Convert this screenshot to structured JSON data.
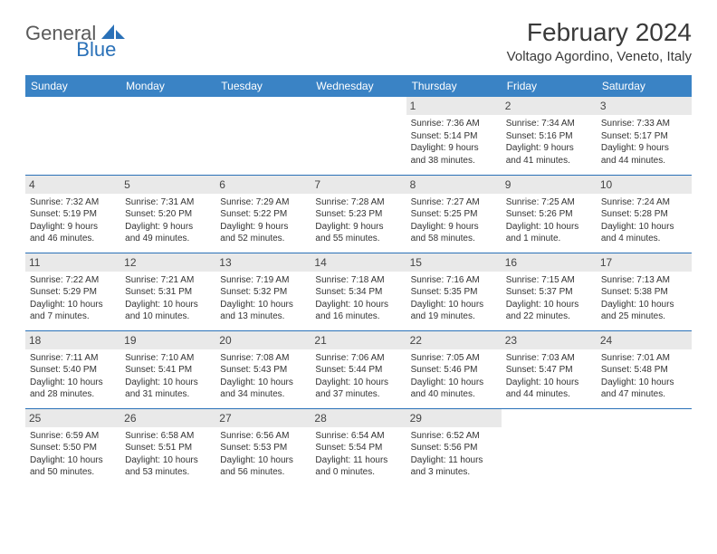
{
  "logo": {
    "general": "General",
    "blue": "Blue"
  },
  "title": "February 2024",
  "location": "Voltago Agordino, Veneto, Italy",
  "colors": {
    "header_bg": "#3a83c5",
    "logo_blue": "#2a71b8",
    "daynum_bg": "#e9e9e9",
    "rule": "#2a71b8"
  },
  "day_headers": [
    "Sunday",
    "Monday",
    "Tuesday",
    "Wednesday",
    "Thursday",
    "Friday",
    "Saturday"
  ],
  "weeks": [
    [
      {
        "n": "",
        "l1": "",
        "l2": "",
        "l3": "",
        "l4": ""
      },
      {
        "n": "",
        "l1": "",
        "l2": "",
        "l3": "",
        "l4": ""
      },
      {
        "n": "",
        "l1": "",
        "l2": "",
        "l3": "",
        "l4": ""
      },
      {
        "n": "",
        "l1": "",
        "l2": "",
        "l3": "",
        "l4": ""
      },
      {
        "n": "1",
        "l1": "Sunrise: 7:36 AM",
        "l2": "Sunset: 5:14 PM",
        "l3": "Daylight: 9 hours",
        "l4": "and 38 minutes."
      },
      {
        "n": "2",
        "l1": "Sunrise: 7:34 AM",
        "l2": "Sunset: 5:16 PM",
        "l3": "Daylight: 9 hours",
        "l4": "and 41 minutes."
      },
      {
        "n": "3",
        "l1": "Sunrise: 7:33 AM",
        "l2": "Sunset: 5:17 PM",
        "l3": "Daylight: 9 hours",
        "l4": "and 44 minutes."
      }
    ],
    [
      {
        "n": "4",
        "l1": "Sunrise: 7:32 AM",
        "l2": "Sunset: 5:19 PM",
        "l3": "Daylight: 9 hours",
        "l4": "and 46 minutes."
      },
      {
        "n": "5",
        "l1": "Sunrise: 7:31 AM",
        "l2": "Sunset: 5:20 PM",
        "l3": "Daylight: 9 hours",
        "l4": "and 49 minutes."
      },
      {
        "n": "6",
        "l1": "Sunrise: 7:29 AM",
        "l2": "Sunset: 5:22 PM",
        "l3": "Daylight: 9 hours",
        "l4": "and 52 minutes."
      },
      {
        "n": "7",
        "l1": "Sunrise: 7:28 AM",
        "l2": "Sunset: 5:23 PM",
        "l3": "Daylight: 9 hours",
        "l4": "and 55 minutes."
      },
      {
        "n": "8",
        "l1": "Sunrise: 7:27 AM",
        "l2": "Sunset: 5:25 PM",
        "l3": "Daylight: 9 hours",
        "l4": "and 58 minutes."
      },
      {
        "n": "9",
        "l1": "Sunrise: 7:25 AM",
        "l2": "Sunset: 5:26 PM",
        "l3": "Daylight: 10 hours",
        "l4": "and 1 minute."
      },
      {
        "n": "10",
        "l1": "Sunrise: 7:24 AM",
        "l2": "Sunset: 5:28 PM",
        "l3": "Daylight: 10 hours",
        "l4": "and 4 minutes."
      }
    ],
    [
      {
        "n": "11",
        "l1": "Sunrise: 7:22 AM",
        "l2": "Sunset: 5:29 PM",
        "l3": "Daylight: 10 hours",
        "l4": "and 7 minutes."
      },
      {
        "n": "12",
        "l1": "Sunrise: 7:21 AM",
        "l2": "Sunset: 5:31 PM",
        "l3": "Daylight: 10 hours",
        "l4": "and 10 minutes."
      },
      {
        "n": "13",
        "l1": "Sunrise: 7:19 AM",
        "l2": "Sunset: 5:32 PM",
        "l3": "Daylight: 10 hours",
        "l4": "and 13 minutes."
      },
      {
        "n": "14",
        "l1": "Sunrise: 7:18 AM",
        "l2": "Sunset: 5:34 PM",
        "l3": "Daylight: 10 hours",
        "l4": "and 16 minutes."
      },
      {
        "n": "15",
        "l1": "Sunrise: 7:16 AM",
        "l2": "Sunset: 5:35 PM",
        "l3": "Daylight: 10 hours",
        "l4": "and 19 minutes."
      },
      {
        "n": "16",
        "l1": "Sunrise: 7:15 AM",
        "l2": "Sunset: 5:37 PM",
        "l3": "Daylight: 10 hours",
        "l4": "and 22 minutes."
      },
      {
        "n": "17",
        "l1": "Sunrise: 7:13 AM",
        "l2": "Sunset: 5:38 PM",
        "l3": "Daylight: 10 hours",
        "l4": "and 25 minutes."
      }
    ],
    [
      {
        "n": "18",
        "l1": "Sunrise: 7:11 AM",
        "l2": "Sunset: 5:40 PM",
        "l3": "Daylight: 10 hours",
        "l4": "and 28 minutes."
      },
      {
        "n": "19",
        "l1": "Sunrise: 7:10 AM",
        "l2": "Sunset: 5:41 PM",
        "l3": "Daylight: 10 hours",
        "l4": "and 31 minutes."
      },
      {
        "n": "20",
        "l1": "Sunrise: 7:08 AM",
        "l2": "Sunset: 5:43 PM",
        "l3": "Daylight: 10 hours",
        "l4": "and 34 minutes."
      },
      {
        "n": "21",
        "l1": "Sunrise: 7:06 AM",
        "l2": "Sunset: 5:44 PM",
        "l3": "Daylight: 10 hours",
        "l4": "and 37 minutes."
      },
      {
        "n": "22",
        "l1": "Sunrise: 7:05 AM",
        "l2": "Sunset: 5:46 PM",
        "l3": "Daylight: 10 hours",
        "l4": "and 40 minutes."
      },
      {
        "n": "23",
        "l1": "Sunrise: 7:03 AM",
        "l2": "Sunset: 5:47 PM",
        "l3": "Daylight: 10 hours",
        "l4": "and 44 minutes."
      },
      {
        "n": "24",
        "l1": "Sunrise: 7:01 AM",
        "l2": "Sunset: 5:48 PM",
        "l3": "Daylight: 10 hours",
        "l4": "and 47 minutes."
      }
    ],
    [
      {
        "n": "25",
        "l1": "Sunrise: 6:59 AM",
        "l2": "Sunset: 5:50 PM",
        "l3": "Daylight: 10 hours",
        "l4": "and 50 minutes."
      },
      {
        "n": "26",
        "l1": "Sunrise: 6:58 AM",
        "l2": "Sunset: 5:51 PM",
        "l3": "Daylight: 10 hours",
        "l4": "and 53 minutes."
      },
      {
        "n": "27",
        "l1": "Sunrise: 6:56 AM",
        "l2": "Sunset: 5:53 PM",
        "l3": "Daylight: 10 hours",
        "l4": "and 56 minutes."
      },
      {
        "n": "28",
        "l1": "Sunrise: 6:54 AM",
        "l2": "Sunset: 5:54 PM",
        "l3": "Daylight: 11 hours",
        "l4": "and 0 minutes."
      },
      {
        "n": "29",
        "l1": "Sunrise: 6:52 AM",
        "l2": "Sunset: 5:56 PM",
        "l3": "Daylight: 11 hours",
        "l4": "and 3 minutes."
      },
      {
        "n": "",
        "l1": "",
        "l2": "",
        "l3": "",
        "l4": ""
      },
      {
        "n": "",
        "l1": "",
        "l2": "",
        "l3": "",
        "l4": ""
      }
    ]
  ]
}
